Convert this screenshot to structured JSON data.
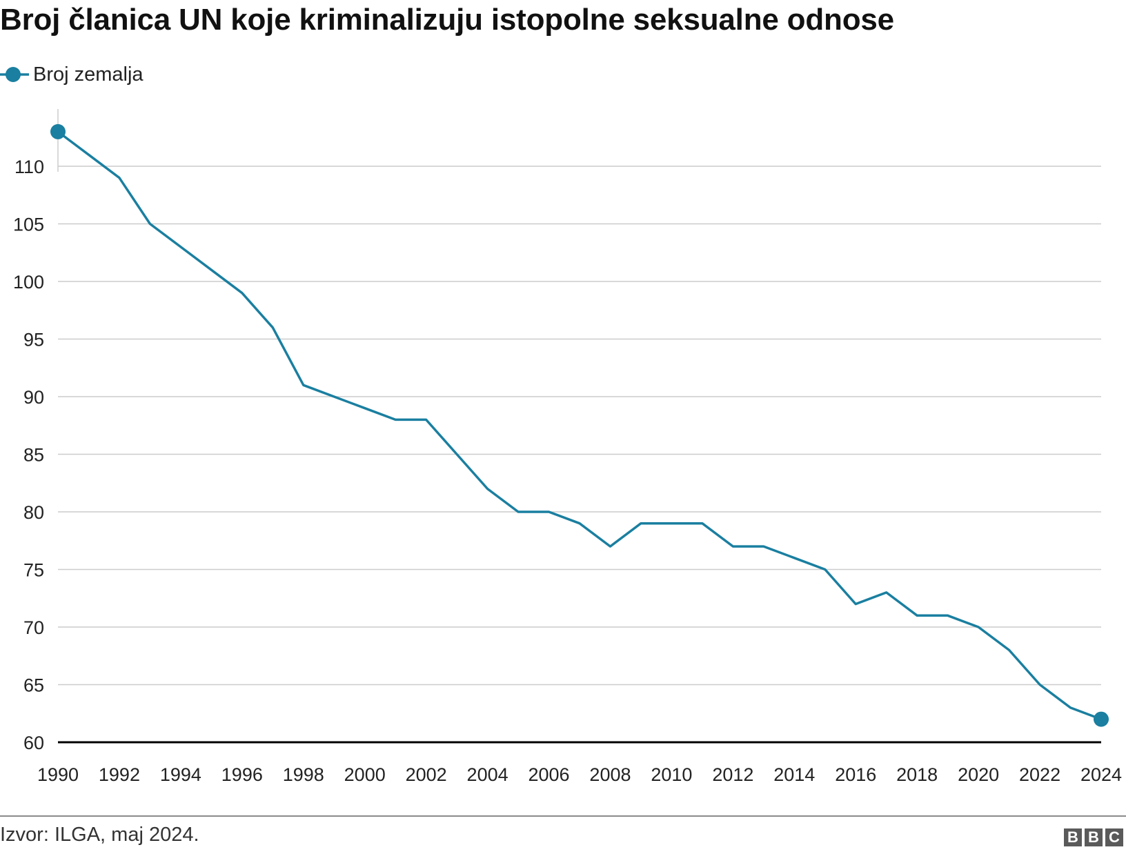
{
  "title": "Broj članica UN koje kriminalizuju istopolne seksualne odnose",
  "legend": {
    "label": "Broj zemalja",
    "icon": "line-with-dot-marker-icon"
  },
  "colors": {
    "series": "#1a7fa0",
    "grid": "#cccccc",
    "baseline": "#000000"
  },
  "chart_data": {
    "type": "line",
    "series": [
      {
        "name": "Broj zemalja",
        "x": [
          1990,
          1991,
          1992,
          1993,
          1994,
          1995,
          1996,
          1997,
          1998,
          1999,
          2000,
          2001,
          2002,
          2003,
          2004,
          2005,
          2006,
          2007,
          2008,
          2009,
          2010,
          2011,
          2012,
          2013,
          2014,
          2015,
          2016,
          2017,
          2018,
          2019,
          2020,
          2021,
          2022,
          2023,
          2024
        ],
        "values": [
          113,
          111,
          109,
          105,
          103,
          101,
          99,
          96,
          91,
          90,
          89,
          88,
          88,
          85,
          82,
          80,
          80,
          79,
          77,
          79,
          79,
          79,
          77,
          77,
          76,
          75,
          72,
          73,
          71,
          71,
          70,
          68,
          65,
          63,
          62
        ]
      }
    ],
    "xlim": [
      1990,
      2024
    ],
    "ylim": [
      60,
      113
    ],
    "x_ticks": [
      "1990",
      "1992",
      "1994",
      "1996",
      "1998",
      "2000",
      "2002",
      "2004",
      "2006",
      "2008",
      "2010",
      "2012",
      "2014",
      "2016",
      "2018",
      "2020",
      "2022",
      "2024"
    ],
    "y_ticks": [
      "60",
      "65",
      "70",
      "75",
      "80",
      "85",
      "90",
      "95",
      "100",
      "105",
      "110"
    ],
    "grid": true,
    "legend_position": "top-left",
    "markers": "first-and-last-point"
  },
  "footer": {
    "source": "Izvor: ILGA, maj 2024.",
    "logo": [
      "B",
      "B",
      "C"
    ]
  }
}
